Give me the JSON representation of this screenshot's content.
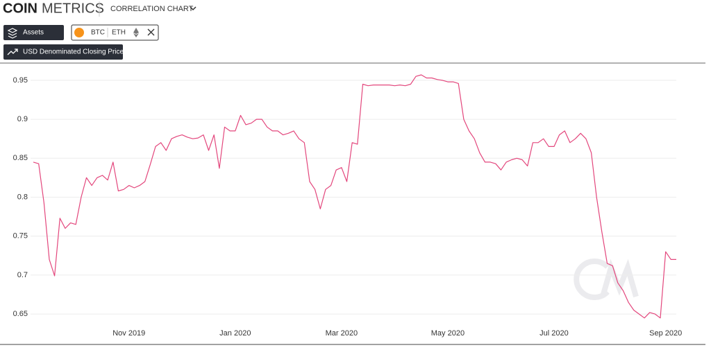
{
  "header": {
    "logo_bold": "COIN",
    "logo_light": "METRICS",
    "view": "CORRELATION CHART",
    "assets_button": "Assets",
    "asset_a": "BTC",
    "asset_b": "ETH",
    "metric_button": "USD Denominated Closing Price"
  },
  "chart_data": {
    "type": "line",
    "categories": [
      null,
      null,
      null,
      null,
      null,
      null,
      null,
      null,
      null,
      null,
      null,
      null,
      null,
      null,
      null,
      null,
      null,
      null,
      "Nov 2019",
      null,
      null,
      null,
      null,
      null,
      null,
      null,
      null,
      null,
      null,
      null,
      null,
      null,
      null,
      null,
      null,
      null,
      null,
      null,
      "Jan 2020",
      null,
      null,
      null,
      null,
      null,
      null,
      null,
      null,
      null,
      null,
      null,
      null,
      null,
      null,
      null,
      null,
      null,
      null,
      null,
      "Mar 2020",
      null,
      null,
      null,
      null,
      null,
      null,
      null,
      null,
      null,
      null,
      null,
      null,
      null,
      null,
      null,
      null,
      null,
      null,
      null,
      "May 2020",
      null,
      null,
      null,
      null,
      null,
      null,
      null,
      null,
      null,
      null,
      null,
      null,
      null,
      null,
      null,
      null,
      null,
      null,
      null,
      "Jul 2020",
      null,
      null,
      null,
      null,
      null,
      null,
      null,
      null,
      null,
      null,
      null,
      null,
      null,
      null,
      null,
      null,
      null,
      null,
      null,
      null,
      "Sep 2020",
      null,
      null
    ],
    "series": [
      {
        "name": "BTC / ETH",
        "color": "#e3467c",
        "values": [
          0.845,
          0.843,
          0.793,
          0.72,
          0.699,
          0.773,
          0.76,
          0.767,
          0.765,
          0.8,
          0.825,
          0.815,
          0.825,
          0.828,
          0.822,
          0.845,
          0.808,
          0.81,
          0.815,
          0.812,
          0.815,
          0.82,
          0.842,
          0.865,
          0.87,
          0.86,
          0.875,
          0.878,
          0.88,
          0.877,
          0.875,
          0.876,
          0.88,
          0.86,
          0.88,
          0.837,
          0.89,
          0.885,
          0.885,
          0.905,
          0.893,
          0.895,
          0.9,
          0.9,
          0.89,
          0.885,
          0.885,
          0.88,
          0.882,
          0.885,
          0.875,
          0.87,
          0.82,
          0.81,
          0.785,
          0.81,
          0.815,
          0.835,
          0.838,
          0.82,
          0.87,
          0.868,
          0.945,
          0.943,
          0.944,
          0.944,
          0.944,
          0.944,
          0.943,
          0.944,
          0.943,
          0.945,
          0.955,
          0.957,
          0.953,
          0.953,
          0.951,
          0.95,
          0.948,
          0.948,
          0.946,
          0.9,
          0.885,
          0.875,
          0.857,
          0.845,
          0.845,
          0.843,
          0.835,
          0.845,
          0.848,
          0.85,
          0.848,
          0.84,
          0.87,
          0.87,
          0.875,
          0.865,
          0.865,
          0.88,
          0.885,
          0.87,
          0.875,
          0.882,
          0.875,
          0.857,
          0.8,
          0.755,
          0.715,
          0.712,
          0.69,
          0.68,
          0.665,
          0.655,
          0.65,
          0.645,
          0.652,
          0.65,
          0.645,
          0.73,
          0.72,
          0.72
        ]
      }
    ],
    "ylim": [
      0.635,
      0.965
    ],
    "yticks": [
      0.65,
      0.7,
      0.75,
      0.8,
      0.85,
      0.9,
      0.95
    ],
    "grid": true
  }
}
